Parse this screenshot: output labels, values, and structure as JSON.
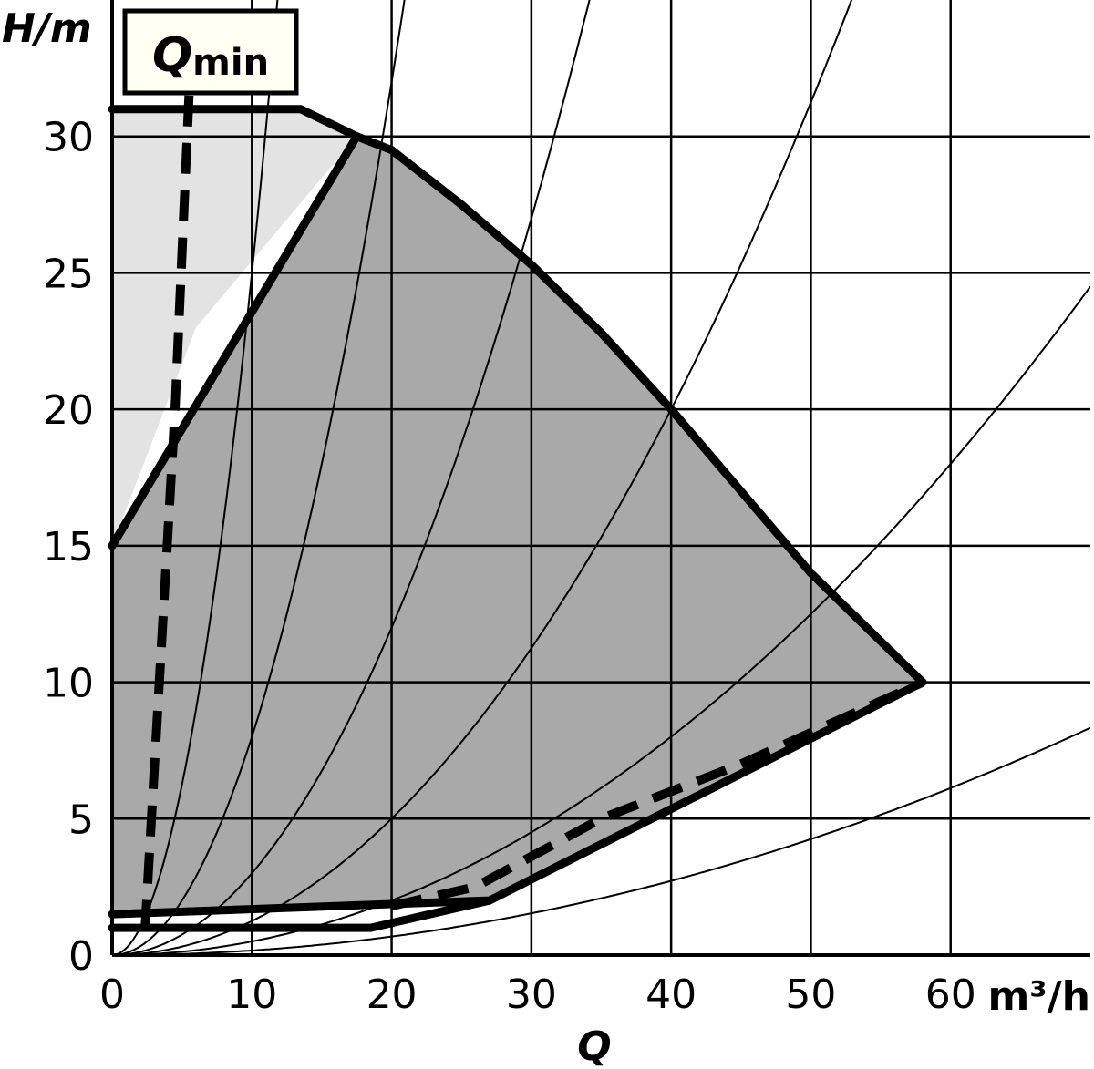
{
  "chart_data": {
    "type": "area",
    "title": "",
    "xlabel": "Q",
    "xunit": "m³/h",
    "ylabel": "H/m",
    "xlim": [
      0,
      70
    ],
    "ylim": [
      0,
      35
    ],
    "x_ticks": [
      0,
      10,
      20,
      30,
      40,
      50,
      60
    ],
    "x_tick_labels": [
      "0",
      "10",
      "20",
      "30",
      "40",
      "50",
      "60"
    ],
    "y_ticks": [
      0,
      5,
      10,
      15,
      20,
      25,
      30
    ],
    "y_tick_labels": [
      "0",
      "5",
      "10",
      "15",
      "20",
      "25",
      "30"
    ],
    "grid": true,
    "annotation": {
      "label_main": "Q",
      "label_sub": "min"
    },
    "colors": {
      "operating_region": "#aaa9aa",
      "max_region": "#e3e3e3",
      "annotation_box": "#fffff4",
      "grid": "#000000"
    },
    "regions": [
      {
        "name": "",
        "style": "light",
        "points": [
          [
            0,
            31
          ],
          [
            13.5,
            31
          ],
          [
            17.5,
            30
          ],
          [
            6,
            23
          ],
          [
            0,
            15
          ]
        ]
      },
      {
        "name": "",
        "style": "dark",
        "points": [
          [
            0,
            15
          ],
          [
            17.5,
            30
          ],
          [
            20,
            29.5
          ],
          [
            25,
            27.5
          ],
          [
            30,
            25.3
          ],
          [
            35,
            22.8
          ],
          [
            40,
            20
          ],
          [
            45,
            17
          ],
          [
            50,
            14
          ],
          [
            55,
            11.5
          ],
          [
            58,
            10
          ],
          [
            27,
            2
          ],
          [
            0,
            1.5
          ]
        ]
      }
    ],
    "boundary_lines": [
      {
        "name": "",
        "points": [
          [
            0,
            31
          ],
          [
            13.5,
            31
          ],
          [
            17.5,
            30
          ],
          [
            20,
            29.5
          ],
          [
            25,
            27.5
          ],
          [
            30,
            25.3
          ],
          [
            35,
            22.8
          ],
          [
            40,
            20
          ],
          [
            45,
            17
          ],
          [
            50,
            14
          ],
          [
            55,
            11.5
          ],
          [
            58,
            10
          ],
          [
            27,
            2
          ],
          [
            0,
            1.5
          ]
        ]
      },
      {
        "name": "",
        "points": [
          [
            0,
            15
          ],
          [
            17.5,
            30
          ]
        ]
      },
      {
        "name": "",
        "points": [
          [
            0,
            1
          ],
          [
            18.5,
            1
          ],
          [
            27,
            2
          ]
        ]
      }
    ],
    "dashed_lines": [
      {
        "name": "",
        "points": [
          [
            5.5,
            31.5
          ],
          [
            4.5,
            20
          ],
          [
            2.3,
            0.5
          ]
        ]
      },
      {
        "name": "",
        "points": [
          [
            20,
            1.8
          ],
          [
            26,
            2.5
          ],
          [
            35,
            5
          ],
          [
            45,
            7
          ],
          [
            58,
            10
          ]
        ]
      }
    ],
    "system_curves": [
      {
        "name": "",
        "k": 0.25
      },
      {
        "name": "",
        "k": 0.08
      },
      {
        "name": "",
        "k": 0.03
      },
      {
        "name": "",
        "k": 0.0125
      },
      {
        "name": "",
        "k": 0.005
      },
      {
        "name": "",
        "k": 0.0017
      }
    ]
  }
}
